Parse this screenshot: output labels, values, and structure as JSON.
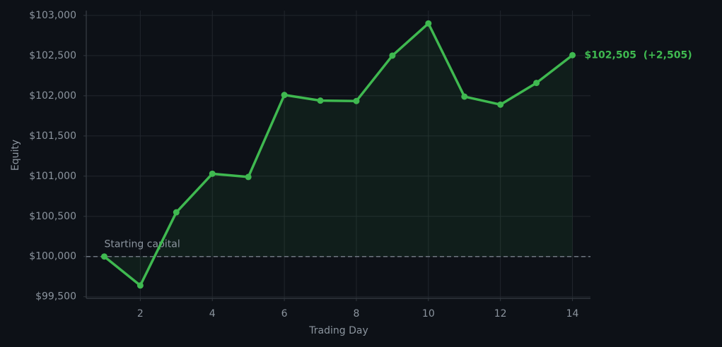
{
  "chart_data": {
    "type": "line",
    "x_label": "Trading Day",
    "y_label": "Equity",
    "x": [
      1,
      2,
      3,
      4,
      5,
      6,
      7,
      8,
      9,
      10,
      11,
      12,
      13,
      14
    ],
    "series": [
      {
        "name": "Equity",
        "color": "#3fb950",
        "values": [
          100000,
          99640,
          100550,
          101030,
          100990,
          102010,
          101940,
          101935,
          102500,
          102900,
          101990,
          101890,
          102160,
          102505
        ]
      }
    ],
    "xlim": [
      0.5,
      14.5
    ],
    "ylim": [
      99480,
      103060
    ],
    "xticks": [
      2,
      4,
      6,
      8,
      10,
      12,
      14
    ],
    "yticks": [
      {
        "value": 99500,
        "label": "$99,500"
      },
      {
        "value": 100000,
        "label": "$100,000"
      },
      {
        "value": 100500,
        "label": "$100,500"
      },
      {
        "value": 101000,
        "label": "$101,000"
      },
      {
        "value": 101500,
        "label": "$101,500"
      },
      {
        "value": 102000,
        "label": "$102,000"
      },
      {
        "value": 102500,
        "label": "$102,500"
      },
      {
        "value": 103000,
        "label": "$103,000"
      }
    ],
    "grid": true,
    "baseline": 100000,
    "baseline_label": "Starting capital",
    "end_label": "$102,505  (+2,505)"
  }
}
